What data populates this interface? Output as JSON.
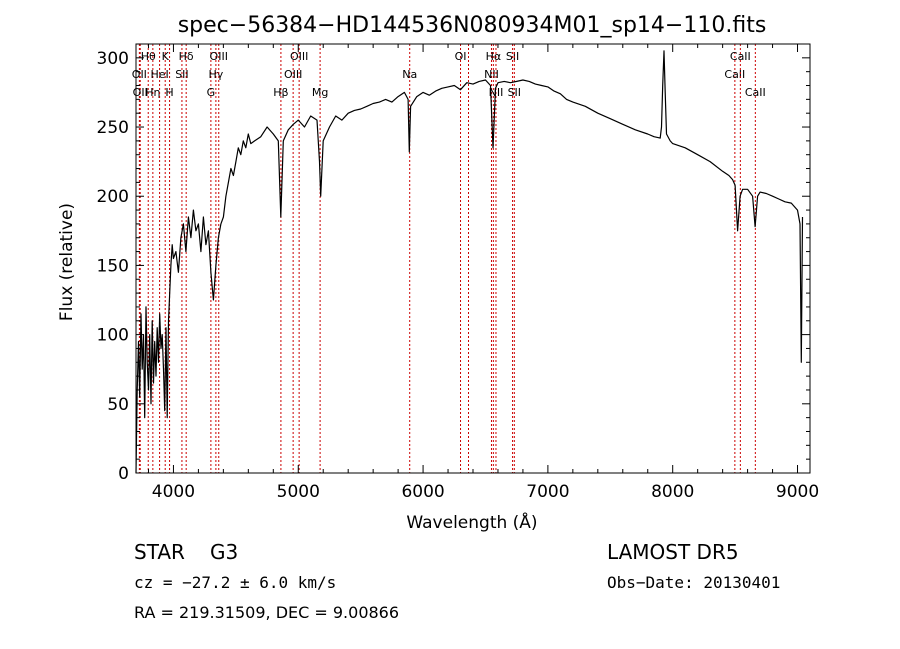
{
  "chart_data": {
    "type": "line",
    "title": "spec−56384−HD144536N080934M01_sp14−110.fits",
    "xlabel": "Wavelength (Å)",
    "ylabel": "Flux (relative)",
    "xlim": [
      3700,
      9100
    ],
    "ylim": [
      0,
      310
    ],
    "x_ticks": [
      4000,
      5000,
      6000,
      7000,
      8000,
      9000
    ],
    "y_ticks": [
      0,
      50,
      100,
      150,
      200,
      250,
      300
    ],
    "x_tick_labels": [
      "4000",
      "5000",
      "6000",
      "7000",
      "8000",
      "9000"
    ],
    "y_tick_labels": [
      "0",
      "50",
      "100",
      "150",
      "200",
      "250",
      "300"
    ],
    "grid": false,
    "series": [
      {
        "color": "#000000",
        "points": [
          [
            3700,
            0
          ],
          [
            3710,
            60
          ],
          [
            3720,
            95
          ],
          [
            3730,
            55
          ],
          [
            3740,
            115
          ],
          [
            3750,
            75
          ],
          [
            3760,
            100
          ],
          [
            3770,
            40
          ],
          [
            3780,
            120
          ],
          [
            3790,
            80
          ],
          [
            3800,
            60
          ],
          [
            3810,
            100
          ],
          [
            3820,
            50
          ],
          [
            3830,
            110
          ],
          [
            3840,
            65
          ],
          [
            3850,
            95
          ],
          [
            3860,
            70
          ],
          [
            3870,
            105
          ],
          [
            3880,
            80
          ],
          [
            3890,
            115
          ],
          [
            3900,
            90
          ],
          [
            3910,
            100
          ],
          [
            3920,
            75
          ],
          [
            3930,
            45
          ],
          [
            3940,
            105
          ],
          [
            3950,
            40
          ],
          [
            3960,
            110
          ],
          [
            3970,
            130
          ],
          [
            3980,
            150
          ],
          [
            3990,
            165
          ],
          [
            4000,
            155
          ],
          [
            4020,
            160
          ],
          [
            4040,
            145
          ],
          [
            4060,
            170
          ],
          [
            4080,
            180
          ],
          [
            4100,
            160
          ],
          [
            4120,
            185
          ],
          [
            4140,
            170
          ],
          [
            4160,
            190
          ],
          [
            4180,
            175
          ],
          [
            4200,
            180
          ],
          [
            4220,
            160
          ],
          [
            4240,
            185
          ],
          [
            4260,
            165
          ],
          [
            4280,
            175
          ],
          [
            4300,
            145
          ],
          [
            4320,
            125
          ],
          [
            4340,
            150
          ],
          [
            4360,
            170
          ],
          [
            4380,
            180
          ],
          [
            4400,
            185
          ],
          [
            4420,
            200
          ],
          [
            4440,
            210
          ],
          [
            4460,
            220
          ],
          [
            4480,
            215
          ],
          [
            4500,
            225
          ],
          [
            4520,
            235
          ],
          [
            4540,
            230
          ],
          [
            4560,
            240
          ],
          [
            4580,
            235
          ],
          [
            4600,
            245
          ],
          [
            4620,
            238
          ],
          [
            4650,
            240
          ],
          [
            4700,
            243
          ],
          [
            4750,
            250
          ],
          [
            4800,
            245
          ],
          [
            4840,
            240
          ],
          [
            4860,
            185
          ],
          [
            4880,
            240
          ],
          [
            4920,
            248
          ],
          [
            4960,
            252
          ],
          [
            5000,
            255
          ],
          [
            5050,
            250
          ],
          [
            5100,
            258
          ],
          [
            5150,
            255
          ],
          [
            5170,
            225
          ],
          [
            5180,
            200
          ],
          [
            5200,
            240
          ],
          [
            5250,
            250
          ],
          [
            5300,
            258
          ],
          [
            5350,
            255
          ],
          [
            5400,
            260
          ],
          [
            5450,
            262
          ],
          [
            5500,
            263
          ],
          [
            5550,
            265
          ],
          [
            5600,
            267
          ],
          [
            5650,
            268
          ],
          [
            5700,
            270
          ],
          [
            5750,
            268
          ],
          [
            5800,
            272
          ],
          [
            5850,
            275
          ],
          [
            5880,
            270
          ],
          [
            5890,
            232
          ],
          [
            5900,
            265
          ],
          [
            5950,
            272
          ],
          [
            6000,
            275
          ],
          [
            6050,
            273
          ],
          [
            6100,
            276
          ],
          [
            6150,
            278
          ],
          [
            6200,
            279
          ],
          [
            6250,
            280
          ],
          [
            6300,
            277
          ],
          [
            6350,
            282
          ],
          [
            6400,
            281
          ],
          [
            6450,
            283
          ],
          [
            6500,
            284
          ],
          [
            6540,
            280
          ],
          [
            6560,
            235
          ],
          [
            6580,
            278
          ],
          [
            6600,
            282
          ],
          [
            6650,
            283
          ],
          [
            6700,
            282
          ],
          [
            6750,
            283
          ],
          [
            6800,
            284
          ],
          [
            6850,
            283
          ],
          [
            6900,
            281
          ],
          [
            6950,
            280
          ],
          [
            7000,
            279
          ],
          [
            7050,
            276
          ],
          [
            7100,
            274
          ],
          [
            7150,
            270
          ],
          [
            7200,
            268
          ],
          [
            7300,
            265
          ],
          [
            7400,
            260
          ],
          [
            7500,
            256
          ],
          [
            7600,
            252
          ],
          [
            7700,
            248
          ],
          [
            7800,
            245
          ],
          [
            7850,
            243
          ],
          [
            7900,
            242
          ],
          [
            7910,
            250
          ],
          [
            7920,
            280
          ],
          [
            7930,
            305
          ],
          [
            7940,
            275
          ],
          [
            7950,
            245
          ],
          [
            7980,
            240
          ],
          [
            8000,
            238
          ],
          [
            8100,
            235
          ],
          [
            8200,
            230
          ],
          [
            8300,
            225
          ],
          [
            8400,
            218
          ],
          [
            8450,
            215
          ],
          [
            8480,
            212
          ],
          [
            8500,
            208
          ],
          [
            8520,
            175
          ],
          [
            8540,
            200
          ],
          [
            8560,
            205
          ],
          [
            8600,
            205
          ],
          [
            8640,
            200
          ],
          [
            8660,
            178
          ],
          [
            8680,
            200
          ],
          [
            8700,
            203
          ],
          [
            8750,
            202
          ],
          [
            8800,
            200
          ],
          [
            8850,
            198
          ],
          [
            8900,
            196
          ],
          [
            8950,
            195
          ],
          [
            9000,
            190
          ],
          [
            9020,
            180
          ],
          [
            9030,
            80
          ],
          [
            9040,
            185
          ]
        ]
      }
    ],
    "line_markers": [
      {
        "x": 3727,
        "labels": [
          "OII"
        ],
        "row": 1
      },
      {
        "x": 3734,
        "labels": [
          "OII"
        ],
        "row": 2
      },
      {
        "x": 3798,
        "labels": [
          "Hθ"
        ],
        "row": 0
      },
      {
        "x": 3835,
        "labels": [
          "Hη"
        ],
        "row": 2
      },
      {
        "x": 3889,
        "labels": [
          "HeI"
        ],
        "row": 1
      },
      {
        "x": 3934,
        "labels": [
          "K"
        ],
        "row": 0
      },
      {
        "x": 3969,
        "labels": [
          "H"
        ],
        "row": 2
      },
      {
        "x": 4068,
        "labels": [
          "SII"
        ],
        "row": 1
      },
      {
        "x": 4102,
        "labels": [
          "Hδ"
        ],
        "row": 0
      },
      {
        "x": 4300,
        "labels": [
          "G"
        ],
        "row": 2
      },
      {
        "x": 4340,
        "labels": [
          "Hγ"
        ],
        "row": 1
      },
      {
        "x": 4363,
        "labels": [
          "OIII"
        ],
        "row": 0
      },
      {
        "x": 4861,
        "labels": [
          "Hβ"
        ],
        "row": 2
      },
      {
        "x": 4959,
        "labels": [
          "OIII"
        ],
        "row": 1
      },
      {
        "x": 5007,
        "labels": [
          "OIII"
        ],
        "row": 0
      },
      {
        "x": 5175,
        "labels": [
          "Mg"
        ],
        "row": 2
      },
      {
        "x": 5893,
        "labels": [
          "Na"
        ],
        "row": 1
      },
      {
        "x": 6300,
        "labels": [
          "OI"
        ],
        "row": 0
      },
      {
        "x": 6364,
        "labels": [],
        "row": 0
      },
      {
        "x": 6548,
        "labels": [
          "NII"
        ],
        "row": 1
      },
      {
        "x": 6563,
        "labels": [
          "Hα"
        ],
        "row": 0
      },
      {
        "x": 6584,
        "labels": [
          "NII"
        ],
        "row": 2
      },
      {
        "x": 6717,
        "labels": [
          "SII"
        ],
        "row": 0
      },
      {
        "x": 6731,
        "labels": [
          "SII"
        ],
        "row": 2
      },
      {
        "x": 8498,
        "labels": [
          "CaII"
        ],
        "row": 1
      },
      {
        "x": 8542,
        "labels": [
          "CaII"
        ],
        "row": 0
      },
      {
        "x": 8662,
        "labels": [
          "CaII"
        ],
        "row": 2
      }
    ],
    "line_marker_color": "#cc0000"
  },
  "info": {
    "object_class": "STAR",
    "subclass": "G3",
    "survey": "LAMOST DR5",
    "cz_text": "cz = −27.2 ± 6.0 km/s",
    "obs_date": "Obs−Date: 20130401",
    "coords": "RA = 219.31509, DEC =   9.00866"
  }
}
